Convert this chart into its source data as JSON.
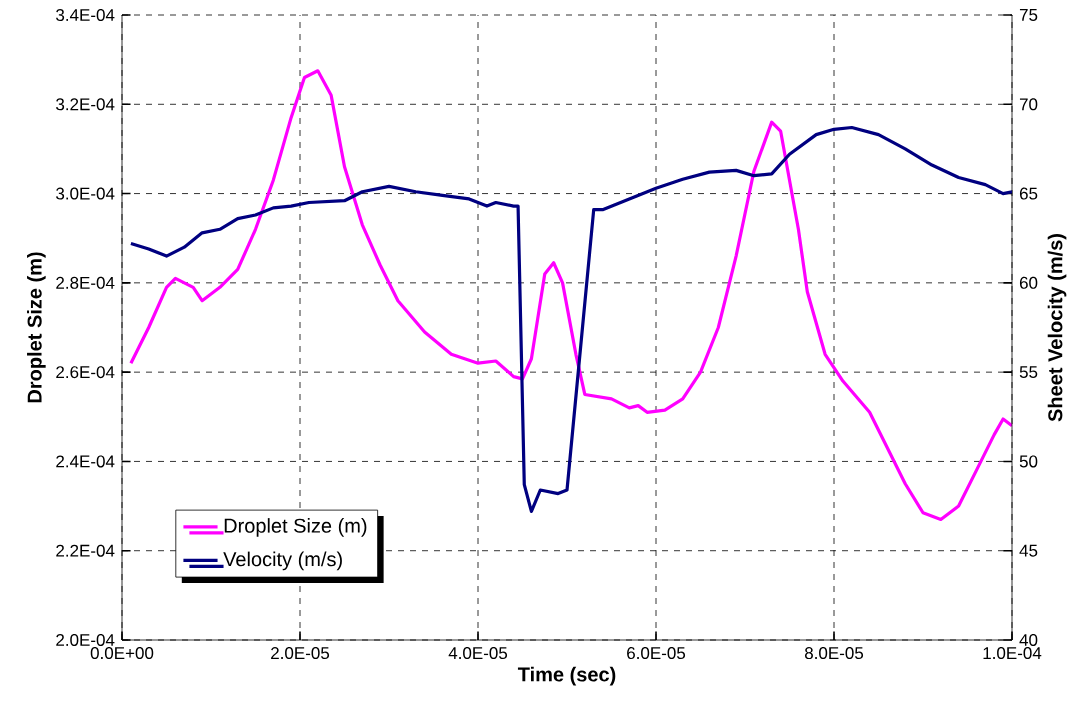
{
  "chart_data": {
    "type": "line",
    "xlabel": "Time (sec)",
    "ylabel": "Droplet Size (m)",
    "y2label": "Sheet Velocity (m/s)",
    "xlim": [
      0,
      0.0001
    ],
    "xticks": [
      {
        "value": 0,
        "label": "0.0E+00"
      },
      {
        "value": 2e-05,
        "label": "2.0E-05"
      },
      {
        "value": 4e-05,
        "label": "4.0E-05"
      },
      {
        "value": 6e-05,
        "label": "6.0E-05"
      },
      {
        "value": 8e-05,
        "label": "8.0E-05"
      },
      {
        "value": 0.0001,
        "label": "1.0E-04"
      }
    ],
    "ylim": [
      0.0002,
      0.00034
    ],
    "yticks": [
      {
        "value": 0.0002,
        "label": "2.0E-04"
      },
      {
        "value": 0.00022,
        "label": "2.2E-04"
      },
      {
        "value": 0.00024,
        "label": "2.4E-04"
      },
      {
        "value": 0.00026,
        "label": "2.6E-04"
      },
      {
        "value": 0.00028,
        "label": "2.8E-04"
      },
      {
        "value": 0.0003,
        "label": "3.0E-04"
      },
      {
        "value": 0.00032,
        "label": "3.2E-04"
      },
      {
        "value": 0.00034,
        "label": "3.4E-04"
      }
    ],
    "y2lim": [
      40,
      75
    ],
    "y2ticks": [
      40,
      45,
      50,
      55,
      60,
      65,
      70,
      75
    ],
    "grid": true,
    "legend": "bottom left",
    "marker": "none",
    "line_style": "solid",
    "series": [
      {
        "name": "Droplet Size (m)",
        "color": "#ff00ff",
        "x": [
          1e-06,
          3e-06,
          5e-06,
          6e-06,
          8e-06,
          9e-06,
          1.1e-05,
          1.3e-05,
          1.5e-05,
          1.7e-05,
          1.9e-05,
          2.05e-05,
          2.2e-05,
          2.35e-05,
          2.5e-05,
          2.7e-05,
          2.9e-05,
          3.1e-05,
          3.4e-05,
          3.7e-05,
          3.85e-05,
          4e-05,
          4.2e-05,
          4.4e-05,
          4.5e-05,
          4.6e-05,
          4.75e-05,
          4.85e-05,
          4.95e-05,
          5.1e-05,
          5.2e-05,
          5.5e-05,
          5.7e-05,
          5.8e-05,
          5.9e-05,
          6.1e-05,
          6.3e-05,
          6.5e-05,
          6.7e-05,
          6.9e-05,
          7.1e-05,
          7.3e-05,
          7.4e-05,
          7.6e-05,
          7.7e-05,
          7.9e-05,
          8.1e-05,
          8.4e-05,
          8.6e-05,
          8.8e-05,
          9e-05,
          9.2e-05,
          9.4e-05,
          9.6e-05,
          9.8e-05,
          9.9e-05,
          0.0001
        ],
        "values": [
          0.000262,
          0.00027,
          0.000279,
          0.000281,
          0.000279,
          0.000276,
          0.000279,
          0.000283,
          0.000292,
          0.000303,
          0.000317,
          0.000326,
          0.0003275,
          0.000322,
          0.000306,
          0.000293,
          0.000284,
          0.000276,
          0.000269,
          0.000264,
          0.000263,
          0.000262,
          0.0002625,
          0.000259,
          0.0002585,
          0.000263,
          0.000282,
          0.0002845,
          0.00028,
          0.000264,
          0.000255,
          0.000254,
          0.000252,
          0.0002525,
          0.000251,
          0.0002515,
          0.000254,
          0.00026,
          0.00027,
          0.000286,
          0.000305,
          0.000316,
          0.000314,
          0.000292,
          0.000278,
          0.000264,
          0.000258,
          0.000251,
          0.000243,
          0.000235,
          0.0002285,
          0.000227,
          0.00023,
          0.000238,
          0.000246,
          0.0002495,
          0.000248
        ]
      },
      {
        "name": "Velocity (m/s)",
        "color": "#000080",
        "axis": "y2",
        "x": [
          1e-06,
          3e-06,
          5e-06,
          7e-06,
          9e-06,
          1.1e-05,
          1.3e-05,
          1.5e-05,
          1.7e-05,
          1.9e-05,
          2.1e-05,
          2.5e-05,
          2.7e-05,
          3e-05,
          3.3e-05,
          3.6e-05,
          3.9e-05,
          4.1e-05,
          4.2e-05,
          4.4e-05,
          4.45e-05,
          4.52e-05,
          4.6e-05,
          4.7e-05,
          4.9e-05,
          5e-05,
          5.3e-05,
          5.4e-05,
          5.7e-05,
          6e-05,
          6.3e-05,
          6.6e-05,
          6.9e-05,
          7.1e-05,
          7.3e-05,
          7.5e-05,
          7.8e-05,
          8e-05,
          8.2e-05,
          8.5e-05,
          8.8e-05,
          9.1e-05,
          9.4e-05,
          9.7e-05,
          9.9e-05,
          0.0001
        ],
        "values": [
          62.2,
          61.9,
          61.5,
          62.0,
          62.8,
          63.0,
          63.6,
          63.8,
          64.2,
          64.3,
          64.5,
          64.6,
          65.1,
          65.4,
          65.1,
          64.9,
          64.7,
          64.3,
          64.5,
          64.3,
          64.3,
          48.7,
          47.2,
          48.4,
          48.2,
          48.4,
          64.1,
          64.1,
          64.7,
          65.3,
          65.8,
          66.2,
          66.3,
          66.0,
          66.1,
          67.2,
          68.3,
          68.6,
          68.7,
          68.3,
          67.5,
          66.6,
          65.9,
          65.5,
          65.0,
          65.1
        ]
      }
    ]
  }
}
